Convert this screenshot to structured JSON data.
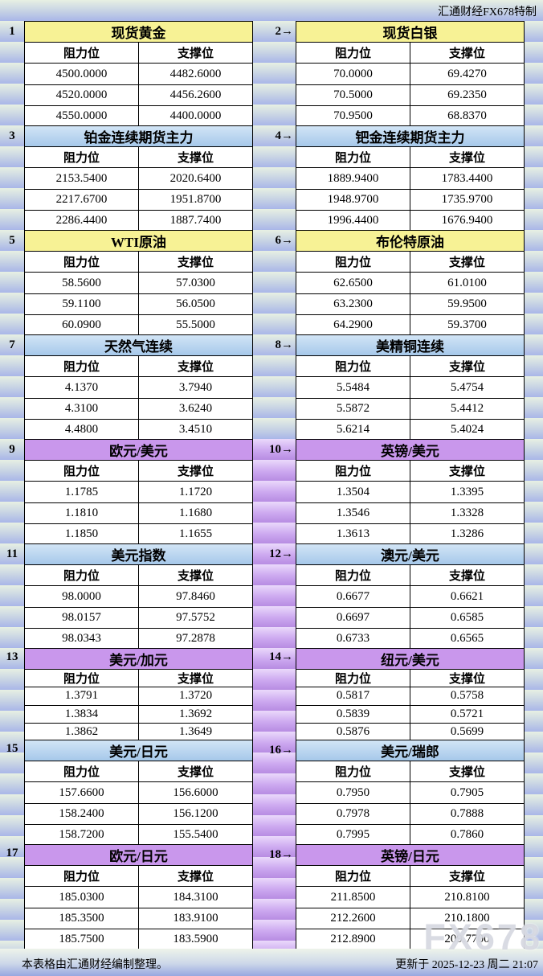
{
  "brand": "汇通财经FX678特制",
  "labels": {
    "resistance": "阻力位",
    "support": "支撑位"
  },
  "footer": {
    "left": "本表格由汇通财经编制整理。",
    "right": "更新于 2025-12-23 周二 21:07",
    "watermark": "FX678"
  },
  "colors": {
    "title_yellow": "#f7f295",
    "title_blue": "#a6c8ea",
    "title_purple": "#c997ec",
    "stripe_green": "#e7f0e3",
    "stripe_blue": "#a9b6e8",
    "gutter_purple": "#b78ce2"
  },
  "panels": [
    {
      "num": "1",
      "title": "现货黄金",
      "rows": [
        [
          "4500.0000",
          "4482.6000"
        ],
        [
          "4520.0000",
          "4456.2600"
        ],
        [
          "4550.0000",
          "4400.0000"
        ]
      ]
    },
    {
      "num": "2→",
      "title": "现货白银",
      "rows": [
        [
          "70.0000",
          "69.4270"
        ],
        [
          "70.5000",
          "69.2350"
        ],
        [
          "70.9500",
          "68.8370"
        ]
      ]
    },
    {
      "num": "3",
      "title": "铂金连续期货主力",
      "rows": [
        [
          "2153.5400",
          "2020.6400"
        ],
        [
          "2217.6700",
          "1951.8700"
        ],
        [
          "2286.4400",
          "1887.7400"
        ]
      ]
    },
    {
      "num": "4→",
      "title": "钯金连续期货主力",
      "rows": [
        [
          "1889.9400",
          "1783.4400"
        ],
        [
          "1948.9700",
          "1735.9700"
        ],
        [
          "1996.4400",
          "1676.9400"
        ]
      ]
    },
    {
      "num": "5",
      "title": "WTI原油",
      "rows": [
        [
          "58.5600",
          "57.0300"
        ],
        [
          "59.1100",
          "56.0500"
        ],
        [
          "60.0900",
          "55.5000"
        ]
      ]
    },
    {
      "num": "6→",
      "title": "布伦特原油",
      "rows": [
        [
          "62.6500",
          "61.0100"
        ],
        [
          "63.2300",
          "59.9500"
        ],
        [
          "64.2900",
          "59.3700"
        ]
      ]
    },
    {
      "num": "7",
      "title": "天然气连续",
      "rows": [
        [
          "4.1370",
          "3.7940"
        ],
        [
          "4.3100",
          "3.6240"
        ],
        [
          "4.4800",
          "3.4510"
        ]
      ]
    },
    {
      "num": "8→",
      "title": "美精铜连续",
      "rows": [
        [
          "5.5484",
          "5.4754"
        ],
        [
          "5.5872",
          "5.4412"
        ],
        [
          "5.6214",
          "5.4024"
        ]
      ]
    },
    {
      "num": "9",
      "title": "欧元/美元",
      "rows": [
        [
          "1.1785",
          "1.1720"
        ],
        [
          "1.1810",
          "1.1680"
        ],
        [
          "1.1850",
          "1.1655"
        ]
      ]
    },
    {
      "num": "10→",
      "title": "英镑/美元",
      "rows": [
        [
          "1.3504",
          "1.3395"
        ],
        [
          "1.3546",
          "1.3328"
        ],
        [
          "1.3613",
          "1.3286"
        ]
      ]
    },
    {
      "num": "11",
      "title": "美元指数",
      "rows": [
        [
          "98.0000",
          "97.8460"
        ],
        [
          "98.0157",
          "97.5752"
        ],
        [
          "98.0343",
          "97.2878"
        ]
      ]
    },
    {
      "num": "12→",
      "title": "澳元/美元",
      "rows": [
        [
          "0.6677",
          "0.6621"
        ],
        [
          "0.6697",
          "0.6585"
        ],
        [
          "0.6733",
          "0.6565"
        ]
      ]
    },
    {
      "num": "13",
      "title": "美元/加元",
      "rows": [
        [
          "1.3791",
          "1.3720"
        ],
        [
          "1.3834",
          "1.3692"
        ],
        [
          "1.3862",
          "1.3649"
        ]
      ]
    },
    {
      "num": "14→",
      "title": "纽元/美元",
      "rows": [
        [
          "0.5817",
          "0.5758"
        ],
        [
          "0.5839",
          "0.5721"
        ],
        [
          "0.5876",
          "0.5699"
        ]
      ]
    },
    {
      "num": "15",
      "title": "美元/日元",
      "rows": [
        [
          "157.6600",
          "156.6000"
        ],
        [
          "158.2400",
          "156.1200"
        ],
        [
          "158.7200",
          "155.5400"
        ]
      ]
    },
    {
      "num": "16→",
      "title": "美元/瑞郎",
      "rows": [
        [
          "0.7950",
          "0.7905"
        ],
        [
          "0.7978",
          "0.7888"
        ],
        [
          "0.7995",
          "0.7860"
        ]
      ]
    },
    {
      "num": "17",
      "title": "欧元/日元",
      "rows": [
        [
          "185.0300",
          "184.3100"
        ],
        [
          "185.3500",
          "183.9100"
        ],
        [
          "185.7500",
          "183.5900"
        ]
      ]
    },
    {
      "num": "18→",
      "title": "英镑/日元",
      "rows": [
        [
          "211.8500",
          "210.8100"
        ],
        [
          "212.2600",
          "210.1800"
        ],
        [
          "212.8900",
          "209.7700"
        ]
      ]
    }
  ]
}
